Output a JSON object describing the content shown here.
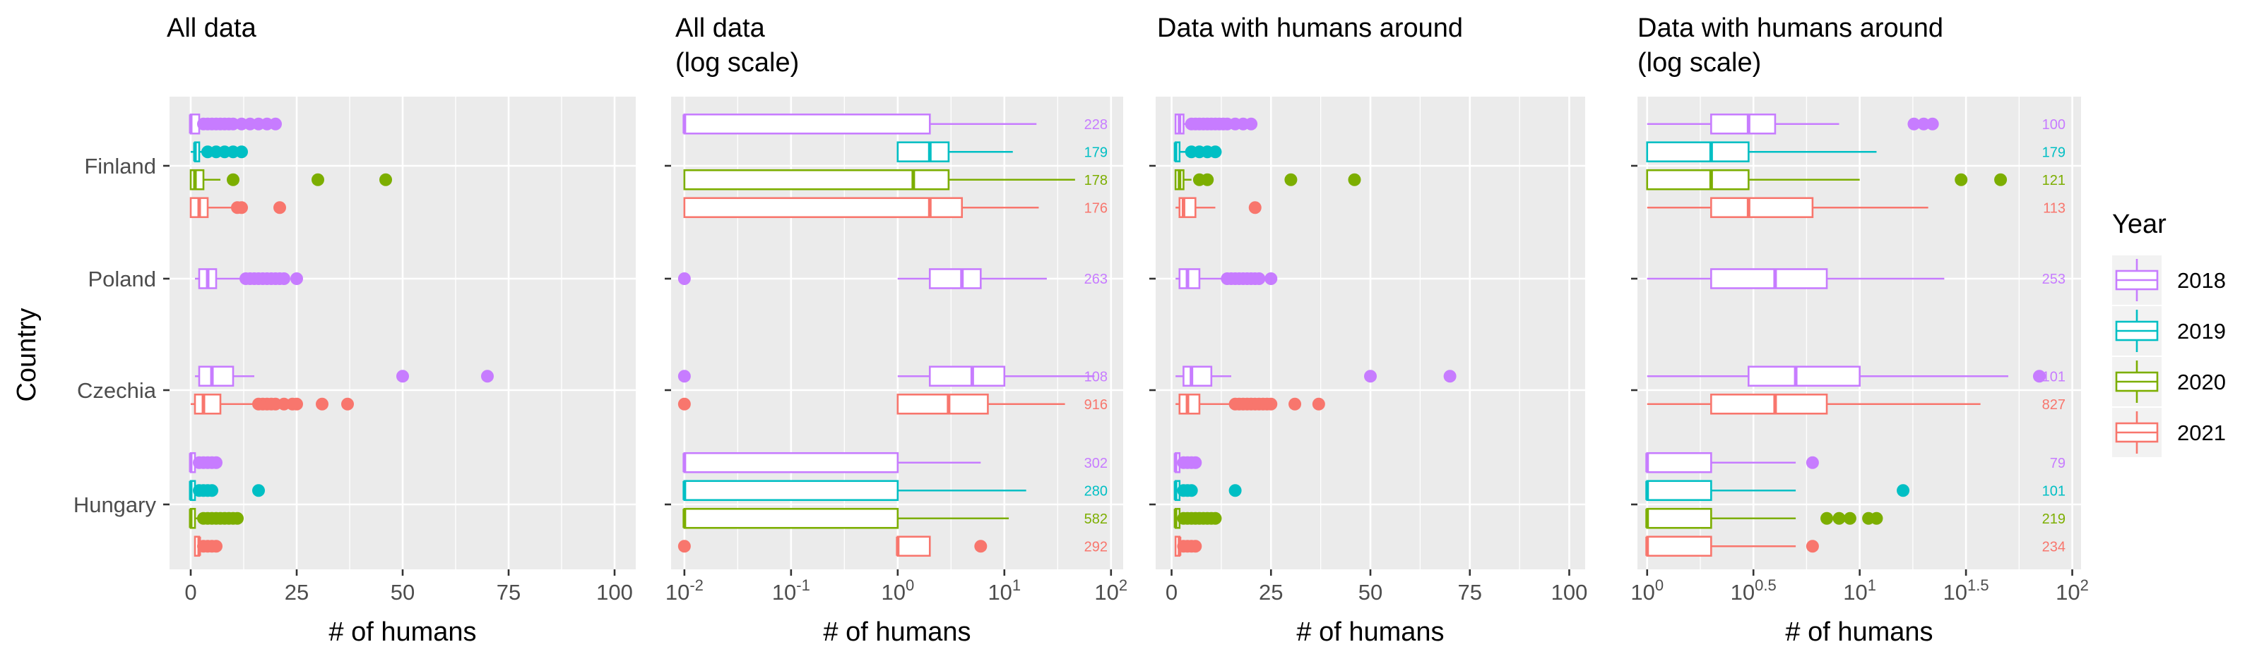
{
  "figure": {
    "ylabel": "Country",
    "countries": [
      "Finland",
      "Poland",
      "Czechia",
      "Hungary"
    ],
    "legend": {
      "title": "Year",
      "items": [
        "2018",
        "2019",
        "2020",
        "2021"
      ],
      "colors": [
        "#C77CFF",
        "#00BFC4",
        "#7CAE00",
        "#F8766D"
      ]
    }
  },
  "chart_data": [
    {
      "type": "boxplot",
      "title": "All data",
      "xlabel": "# of humans",
      "ylabel": "Country",
      "x_scale": "linear",
      "xlim": [
        -5,
        105
      ],
      "x_ticks": [
        0,
        25,
        50,
        75,
        100
      ],
      "x_tick_labels": [
        "0",
        "25",
        "50",
        "75",
        "100"
      ],
      "grid": true,
      "series": [
        {
          "country": "Finland",
          "year": "2018",
          "whisker_low": 0,
          "q1": 0,
          "median": 0,
          "q3": 2,
          "whisker_high": 2,
          "outliers": [
            3,
            4,
            5,
            6,
            7,
            8,
            9,
            10,
            12,
            14,
            16,
            18,
            20
          ]
        },
        {
          "country": "Finland",
          "year": "2019",
          "whisker_low": 0,
          "q1": 1,
          "median": 1,
          "q3": 2,
          "whisker_high": 3,
          "outliers": [
            4,
            6,
            8,
            10,
            12
          ]
        },
        {
          "country": "Finland",
          "year": "2020",
          "whisker_low": 0,
          "q1": 0,
          "median": 1,
          "q3": 3,
          "whisker_high": 7,
          "outliers": [
            10,
            30,
            46
          ]
        },
        {
          "country": "Finland",
          "year": "2021",
          "whisker_low": 0,
          "q1": 0,
          "median": 2,
          "q3": 4,
          "whisker_high": 10,
          "outliers": [
            11,
            12,
            21
          ]
        },
        {
          "country": "Poland",
          "year": "2018",
          "whisker_low": 1,
          "q1": 2,
          "median": 4,
          "q3": 6,
          "whisker_high": 12,
          "outliers": [
            13,
            14,
            15,
            16,
            17,
            18,
            19,
            20,
            21,
            22,
            25
          ]
        },
        {
          "country": "Czechia",
          "year": "2018",
          "whisker_low": 1,
          "q1": 2,
          "median": 5,
          "q3": 10,
          "whisker_high": 15,
          "outliers": [
            50,
            70
          ]
        },
        {
          "country": "Czechia",
          "year": "2021",
          "whisker_low": 0,
          "q1": 1,
          "median": 3,
          "q3": 7,
          "whisker_high": 15,
          "outliers": [
            16,
            17,
            18,
            19,
            20,
            22,
            24,
            25,
            31,
            37
          ]
        },
        {
          "country": "Hungary",
          "year": "2018",
          "whisker_low": 0,
          "q1": 0,
          "median": 0,
          "q3": 1,
          "whisker_high": 1,
          "outliers": [
            2,
            3,
            4,
            5,
            6
          ]
        },
        {
          "country": "Hungary",
          "year": "2019",
          "whisker_low": 0,
          "q1": 0,
          "median": 0,
          "q3": 1,
          "whisker_high": 1,
          "outliers": [
            2,
            3,
            4,
            5,
            16
          ]
        },
        {
          "country": "Hungary",
          "year": "2020",
          "whisker_low": 0,
          "q1": 0,
          "median": 0,
          "q3": 1,
          "whisker_high": 2,
          "outliers": [
            3,
            4,
            5,
            6,
            7,
            8,
            9,
            10,
            11
          ]
        },
        {
          "country": "Hungary",
          "year": "2021",
          "whisker_low": 1,
          "q1": 1,
          "median": 2,
          "q3": 2,
          "whisker_high": 2,
          "outliers": [
            3,
            4,
            5,
            6
          ]
        }
      ]
    },
    {
      "type": "boxplot",
      "title": "All data\n(log scale)",
      "xlabel": "# of humans",
      "x_scale": "log10",
      "xlim": [
        0.0075,
        130
      ],
      "x_ticks": [
        0.01,
        0.1,
        1,
        10,
        100
      ],
      "x_tick_labels": [
        {
          "base": "10",
          "exp": "-2"
        },
        {
          "base": "10",
          "exp": "-1"
        },
        {
          "base": "10",
          "exp": "0"
        },
        {
          "base": "10",
          "exp": "1"
        },
        {
          "base": "10",
          "exp": "2"
        }
      ],
      "grid": true,
      "series": [
        {
          "country": "Finland",
          "year": "2018",
          "whisker_low": 0.01,
          "q1": 0.01,
          "median": 0.01,
          "q3": 2,
          "whisker_high": 20,
          "outliers": [],
          "n": "228"
        },
        {
          "country": "Finland",
          "year": "2019",
          "whisker_low": 1,
          "q1": 1,
          "median": 2,
          "q3": 3,
          "whisker_high": 12,
          "outliers": [],
          "n": "179"
        },
        {
          "country": "Finland",
          "year": "2020",
          "whisker_low": 0.01,
          "q1": 0.01,
          "median": 1.4,
          "q3": 3,
          "whisker_high": 46,
          "outliers": [],
          "n": "178"
        },
        {
          "country": "Finland",
          "year": "2021",
          "whisker_low": 0.01,
          "q1": 0.01,
          "median": 2,
          "q3": 4,
          "whisker_high": 21,
          "outliers": [],
          "n": "176"
        },
        {
          "country": "Poland",
          "year": "2018",
          "whisker_low": 1,
          "q1": 2,
          "median": 4,
          "q3": 6,
          "whisker_high": 25,
          "outliers": [
            0.01
          ],
          "n": "263"
        },
        {
          "country": "Czechia",
          "year": "2018",
          "whisker_low": 1,
          "q1": 2,
          "median": 5,
          "q3": 10,
          "whisker_high": 70,
          "outliers": [
            0.01
          ],
          "n": "108"
        },
        {
          "country": "Czechia",
          "year": "2021",
          "whisker_low": 1,
          "q1": 1,
          "median": 3,
          "q3": 7,
          "whisker_high": 37,
          "outliers": [
            0.01
          ],
          "n": "916"
        },
        {
          "country": "Hungary",
          "year": "2018",
          "whisker_low": 0.01,
          "q1": 0.01,
          "median": 0.01,
          "q3": 1,
          "whisker_high": 6,
          "outliers": [],
          "n": "302"
        },
        {
          "country": "Hungary",
          "year": "2019",
          "whisker_low": 0.01,
          "q1": 0.01,
          "median": 0.01,
          "q3": 1,
          "whisker_high": 16,
          "outliers": [],
          "n": "280"
        },
        {
          "country": "Hungary",
          "year": "2020",
          "whisker_low": 0.01,
          "q1": 0.01,
          "median": 0.01,
          "q3": 1,
          "whisker_high": 11,
          "outliers": [],
          "n": "582"
        },
        {
          "country": "Hungary",
          "year": "2021",
          "whisker_low": 1,
          "q1": 1,
          "median": 1,
          "q3": 2,
          "whisker_high": 2,
          "outliers": [
            0.01,
            6
          ],
          "n": "292"
        }
      ]
    },
    {
      "type": "boxplot",
      "title": "Data with humans around",
      "xlabel": "# of humans",
      "x_scale": "linear",
      "xlim": [
        -4,
        104
      ],
      "x_ticks": [
        0,
        25,
        50,
        75,
        100
      ],
      "x_tick_labels": [
        "0",
        "25",
        "50",
        "75",
        "100"
      ],
      "grid": true,
      "series": [
        {
          "country": "Finland",
          "year": "2018",
          "whisker_low": 1,
          "q1": 1,
          "median": 2,
          "q3": 3,
          "whisker_high": 4,
          "outliers": [
            5,
            6,
            7,
            8,
            9,
            10,
            11,
            12,
            13,
            14,
            16,
            18,
            20
          ]
        },
        {
          "country": "Finland",
          "year": "2019",
          "whisker_low": 1,
          "q1": 1,
          "median": 1,
          "q3": 2,
          "whisker_high": 4,
          "outliers": [
            5,
            7,
            9,
            11
          ]
        },
        {
          "country": "Finland",
          "year": "2020",
          "whisker_low": 1,
          "q1": 1,
          "median": 2,
          "q3": 3,
          "whisker_high": 5,
          "outliers": [
            7,
            9,
            30,
            46
          ]
        },
        {
          "country": "Finland",
          "year": "2021",
          "whisker_low": 1,
          "q1": 2,
          "median": 3,
          "q3": 6,
          "whisker_high": 11,
          "outliers": [
            21
          ]
        },
        {
          "country": "Poland",
          "year": "2018",
          "whisker_low": 1,
          "q1": 2,
          "median": 4,
          "q3": 7,
          "whisker_high": 13,
          "outliers": [
            14,
            15,
            16,
            17,
            18,
            19,
            20,
            21,
            22,
            25
          ]
        },
        {
          "country": "Czechia",
          "year": "2018",
          "whisker_low": 1,
          "q1": 3,
          "median": 5,
          "q3": 10,
          "whisker_high": 15,
          "outliers": [
            50,
            70
          ]
        },
        {
          "country": "Czechia",
          "year": "2021",
          "whisker_low": 1,
          "q1": 2,
          "median": 4,
          "q3": 7,
          "whisker_high": 15,
          "outliers": [
            16,
            17,
            18,
            19,
            20,
            21,
            22,
            23,
            24,
            25,
            31,
            37
          ]
        },
        {
          "country": "Hungary",
          "year": "2018",
          "whisker_low": 1,
          "q1": 1,
          "median": 1,
          "q3": 2,
          "whisker_high": 2,
          "outliers": [
            3,
            4,
            5,
            6
          ]
        },
        {
          "country": "Hungary",
          "year": "2019",
          "whisker_low": 1,
          "q1": 1,
          "median": 1,
          "q3": 2,
          "whisker_high": 2,
          "outliers": [
            3,
            4,
            5,
            16
          ]
        },
        {
          "country": "Hungary",
          "year": "2020",
          "whisker_low": 1,
          "q1": 1,
          "median": 1,
          "q3": 2,
          "whisker_high": 2,
          "outliers": [
            3,
            4,
            5,
            6,
            7,
            8,
            9,
            10,
            11
          ]
        },
        {
          "country": "Hungary",
          "year": "2021",
          "whisker_low": 1,
          "q1": 1,
          "median": 2,
          "q3": 2,
          "whisker_high": 2,
          "outliers": [
            3,
            4,
            5,
            6
          ]
        }
      ]
    },
    {
      "type": "boxplot",
      "title": "Data with humans around\n(log scale)",
      "xlabel": "# of humans",
      "x_scale": "log10",
      "xlim": [
        0.9,
        110
      ],
      "x_ticks": [
        1,
        3.1623,
        10,
        31.623,
        100
      ],
      "x_tick_labels": [
        {
          "base": "10",
          "exp": "0"
        },
        {
          "base": "10",
          "exp": "0.5"
        },
        {
          "base": "10",
          "exp": "1"
        },
        {
          "base": "10",
          "exp": "1.5"
        },
        {
          "base": "10",
          "exp": "2"
        }
      ],
      "grid": true,
      "series": [
        {
          "country": "Finland",
          "year": "2018",
          "whisker_low": 1,
          "q1": 2,
          "median": 3,
          "q3": 4,
          "whisker_high": 8,
          "outliers": [
            18,
            20,
            22
          ],
          "n": "100"
        },
        {
          "country": "Finland",
          "year": "2019",
          "whisker_low": 1,
          "q1": 1,
          "median": 2,
          "q3": 3,
          "whisker_high": 12,
          "outliers": [],
          "n": "179"
        },
        {
          "country": "Finland",
          "year": "2020",
          "whisker_low": 1,
          "q1": 1,
          "median": 2,
          "q3": 3,
          "whisker_high": 10,
          "outliers": [
            30,
            46
          ],
          "n": "121"
        },
        {
          "country": "Finland",
          "year": "2021",
          "whisker_low": 1,
          "q1": 2,
          "median": 3,
          "q3": 6,
          "whisker_high": 21,
          "outliers": [],
          "n": "113"
        },
        {
          "country": "Poland",
          "year": "2018",
          "whisker_low": 1,
          "q1": 2,
          "median": 4,
          "q3": 7,
          "whisker_high": 25,
          "outliers": [],
          "n": "253"
        },
        {
          "country": "Czechia",
          "year": "2018",
          "whisker_low": 1,
          "q1": 3,
          "median": 5,
          "q3": 10,
          "whisker_high": 50,
          "outliers": [
            70
          ],
          "n": "101"
        },
        {
          "country": "Czechia",
          "year": "2021",
          "whisker_low": 1,
          "q1": 2,
          "median": 4,
          "q3": 7,
          "whisker_high": 37,
          "outliers": [],
          "n": "827"
        },
        {
          "country": "Hungary",
          "year": "2018",
          "whisker_low": 1,
          "q1": 1,
          "median": 1,
          "q3": 2,
          "whisker_high": 5,
          "outliers": [
            6
          ],
          "n": "79"
        },
        {
          "country": "Hungary",
          "year": "2019",
          "whisker_low": 1,
          "q1": 1,
          "median": 1,
          "q3": 2,
          "whisker_high": 5,
          "outliers": [
            16
          ],
          "n": "101"
        },
        {
          "country": "Hungary",
          "year": "2020",
          "whisker_low": 1,
          "q1": 1,
          "median": 1,
          "q3": 2,
          "whisker_high": 5,
          "outliers": [
            7,
            8,
            9,
            11,
            12
          ],
          "n": "219"
        },
        {
          "country": "Hungary",
          "year": "2021",
          "whisker_low": 1,
          "q1": 1,
          "median": 1,
          "q3": 2,
          "whisker_high": 5,
          "outliers": [
            6
          ],
          "n": "234"
        }
      ]
    }
  ]
}
